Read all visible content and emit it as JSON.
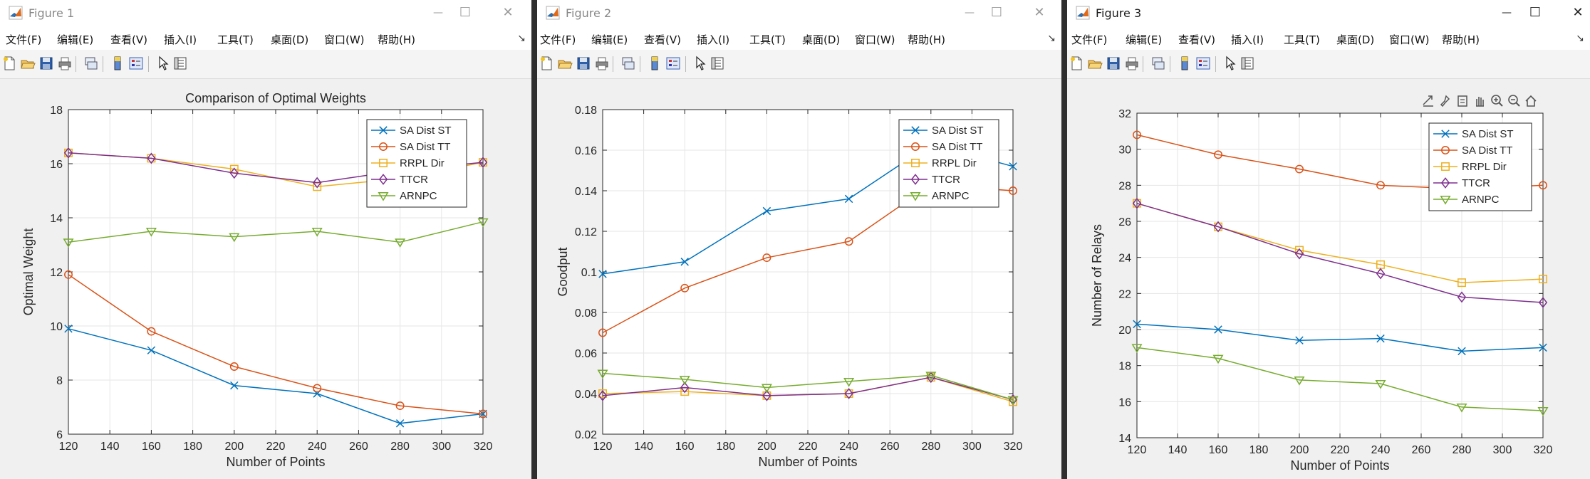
{
  "menus": [
    "文件(F)",
    "编辑(E)",
    "查看(V)",
    "插入(I)",
    "工具(T)",
    "桌面(D)",
    "窗口(W)",
    "帮助(H)"
  ],
  "menu_overflow": "↘",
  "window_buttons": {
    "minimize": "—",
    "maximize": "☐",
    "close": "✕"
  },
  "figures": [
    {
      "title": "Figure 1",
      "active": false,
      "chart_data": {
        "type": "line",
        "title": "Comparison of Optimal Weights",
        "xlabel": "Number of Points",
        "ylabel": "Optimal Weight",
        "xlim": [
          120,
          320
        ],
        "ylim": [
          6,
          18
        ],
        "xticks": [
          120,
          140,
          160,
          180,
          200,
          220,
          240,
          260,
          280,
          300,
          320
        ],
        "yticks": [
          6,
          8,
          10,
          12,
          14,
          16,
          18
        ],
        "grid": true,
        "legend": "top-right",
        "x": [
          120,
          160,
          200,
          240,
          280,
          320
        ],
        "series": [
          {
            "name": "SA Dist ST",
            "marker": "x",
            "color": "#0072BD",
            "values": [
              9.9,
              9.1,
              7.8,
              7.5,
              6.4,
              6.75
            ]
          },
          {
            "name": "SA Dist TT",
            "marker": "o",
            "color": "#D95319",
            "values": [
              11.9,
              9.8,
              8.5,
              7.7,
              7.05,
              6.75
            ]
          },
          {
            "name": "RRPL Dir",
            "marker": "s",
            "color": "#EDB120",
            "values": [
              16.4,
              16.2,
              15.8,
              15.15,
              15.45,
              16.05
            ]
          },
          {
            "name": "TTCR",
            "marker": "d",
            "color": "#7E2F8E",
            "values": [
              16.4,
              16.2,
              15.65,
              15.3,
              15.75,
              16.05
            ]
          },
          {
            "name": "ARNPC",
            "marker": "v",
            "color": "#77AC30",
            "values": [
              13.1,
              13.5,
              13.3,
              13.5,
              13.1,
              13.85
            ]
          }
        ]
      }
    },
    {
      "title": "Figure 2",
      "active": false,
      "chart_data": {
        "type": "line",
        "title": "",
        "xlabel": "Number of Points",
        "ylabel": "Goodput",
        "xlim": [
          120,
          320
        ],
        "ylim": [
          0.02,
          0.18
        ],
        "xticks": [
          120,
          140,
          160,
          180,
          200,
          220,
          240,
          260,
          280,
          300,
          320
        ],
        "yticks": [
          0.02,
          0.04,
          0.06,
          0.08,
          0.1,
          0.12,
          0.14,
          0.16,
          0.18
        ],
        "grid": true,
        "legend": "top-right",
        "x": [
          120,
          160,
          200,
          240,
          280,
          320
        ],
        "series": [
          {
            "name": "SA Dist ST",
            "marker": "x",
            "color": "#0072BD",
            "values": [
              0.099,
              0.105,
              0.13,
              0.136,
              0.163,
              0.152
            ]
          },
          {
            "name": "SA Dist TT",
            "marker": "o",
            "color": "#D95319",
            "values": [
              0.07,
              0.092,
              0.107,
              0.115,
              0.143,
              0.14
            ]
          },
          {
            "name": "RRPL Dir",
            "marker": "s",
            "color": "#EDB120",
            "values": [
              0.04,
              0.041,
              0.039,
              0.04,
              0.048,
              0.036
            ]
          },
          {
            "name": "TTCR",
            "marker": "d",
            "color": "#7E2F8E",
            "values": [
              0.039,
              0.043,
              0.039,
              0.04,
              0.048,
              0.037
            ]
          },
          {
            "name": "ARNPC",
            "marker": "v",
            "color": "#77AC30",
            "values": [
              0.05,
              0.047,
              0.043,
              0.046,
              0.049,
              0.037
            ]
          }
        ]
      }
    },
    {
      "title": "Figure 3",
      "active": true,
      "chart_data": {
        "type": "line",
        "title": "",
        "xlabel": "Number of Points",
        "ylabel": "Number of Relays",
        "xlim": [
          120,
          320
        ],
        "ylim": [
          14,
          32
        ],
        "xticks": [
          120,
          140,
          160,
          180,
          200,
          220,
          240,
          260,
          280,
          300,
          320
        ],
        "yticks": [
          14,
          16,
          18,
          20,
          22,
          24,
          26,
          28,
          30,
          32
        ],
        "grid": true,
        "legend": "top-right",
        "x": [
          120,
          160,
          200,
          240,
          280,
          320
        ],
        "series": [
          {
            "name": "SA Dist ST",
            "marker": "x",
            "color": "#0072BD",
            "values": [
              20.3,
              20.0,
              19.4,
              19.5,
              18.8,
              19.0
            ]
          },
          {
            "name": "SA Dist TT",
            "marker": "o",
            "color": "#D95319",
            "values": [
              30.8,
              29.7,
              28.9,
              28.0,
              27.8,
              28.0
            ]
          },
          {
            "name": "RRPL Dir",
            "marker": "s",
            "color": "#EDB120",
            "values": [
              27.0,
              25.7,
              24.4,
              23.6,
              22.6,
              22.8
            ]
          },
          {
            "name": "TTCR",
            "marker": "d",
            "color": "#7E2F8E",
            "values": [
              27.0,
              25.7,
              24.2,
              23.1,
              21.8,
              21.5
            ]
          },
          {
            "name": "ARNPC",
            "marker": "v",
            "color": "#77AC30",
            "values": [
              19.0,
              18.4,
              17.2,
              17.0,
              15.7,
              15.5
            ]
          }
        ]
      }
    }
  ]
}
